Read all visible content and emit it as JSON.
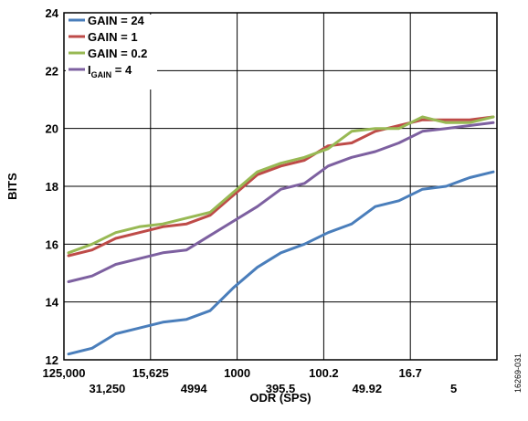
{
  "chart_data": {
    "type": "line",
    "xlabel": "ODR (SPS)",
    "ylabel": "BITS",
    "ylim": [
      12,
      24
    ],
    "yticks": [
      12,
      14,
      16,
      18,
      20,
      22,
      24
    ],
    "x_tick_labels_upper": [
      "125,000",
      "15,625",
      "1000",
      "100.2",
      "16.7"
    ],
    "x_tick_labels_lower": [
      "31,250",
      "4994",
      "395.5",
      "49.92",
      "5"
    ],
    "grid": true,
    "legend_position": "top-left",
    "figure_id": "16269-031",
    "series": [
      {
        "name": "GAIN = 24",
        "legend_main": "GAIN = 24",
        "legend_sub": "",
        "legend_suffix": "",
        "color": "#4a7ebb",
        "values": [
          12.2,
          12.4,
          12.9,
          13.1,
          13.3,
          13.4,
          13.7,
          14.5,
          15.2,
          15.7,
          16.0,
          16.4,
          16.7,
          17.3,
          17.5,
          17.9,
          18.0,
          18.3,
          18.5
        ]
      },
      {
        "name": "GAIN = 1",
        "legend_main": "GAIN = 1",
        "legend_sub": "",
        "legend_suffix": "",
        "color": "#be4b48",
        "values": [
          15.6,
          15.8,
          16.2,
          16.4,
          16.6,
          16.7,
          17.0,
          17.7,
          18.4,
          18.7,
          18.9,
          19.4,
          19.5,
          19.9,
          20.1,
          20.3,
          20.3,
          20.3,
          20.4
        ]
      },
      {
        "name": "GAIN = 0.2",
        "legend_main": "GAIN = 0.2",
        "legend_sub": "",
        "legend_suffix": "",
        "color": "#98b954",
        "values": [
          15.7,
          16.0,
          16.4,
          16.6,
          16.7,
          16.9,
          17.1,
          17.8,
          18.5,
          18.8,
          19.0,
          19.3,
          19.9,
          20.0,
          20.0,
          20.4,
          20.2,
          20.2,
          20.4
        ]
      },
      {
        "name": "IGAIN = 4",
        "legend_main": "I",
        "legend_sub": "GAIN",
        "legend_suffix": " = 4",
        "color": "#7d60a0",
        "values": [
          14.7,
          14.9,
          15.3,
          15.5,
          15.7,
          15.8,
          16.3,
          16.8,
          17.3,
          17.9,
          18.1,
          18.7,
          19.0,
          19.2,
          19.5,
          19.9,
          20.0,
          20.1,
          20.2
        ]
      }
    ]
  }
}
